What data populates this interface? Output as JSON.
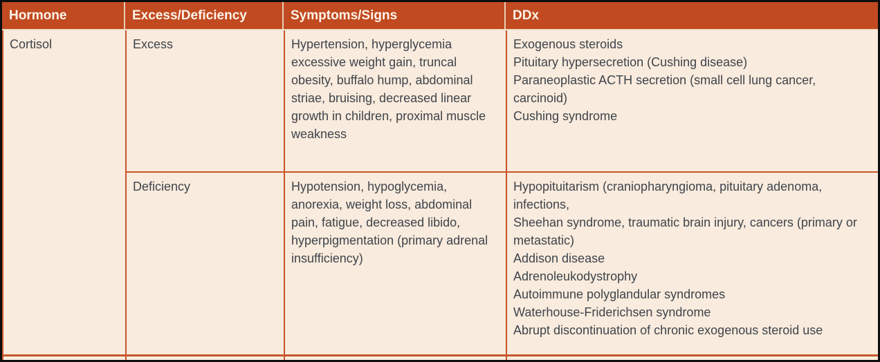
{
  "table": {
    "columns": [
      "Hormone",
      "Excess/Deficiency",
      "Symptoms/Signs",
      "DDx"
    ],
    "hormone": "Cortisol",
    "rows": [
      {
        "state": "Excess",
        "symptoms": "Hypertension, hyperglycemia excessive weight gain, truncal obesity, buffalo hump, abdominal striae, bruising, decreased linear growth in children, proximal muscle weakness",
        "ddx": [
          "Exogenous steroids",
          "Pituitary hypersecretion (Cushing disease)",
          "Paraneoplastic ACTH secretion (small cell lung cancer, carcinoid)",
          "Cushing syndrome"
        ]
      },
      {
        "state": "Deficiency",
        "symptoms": "Hypotension, hypoglycemia, anorexia, weight loss, abdominal pain, fatigue, decreased libido, hyperpigmentation (primary adrenal insufficiency)",
        "ddx": [
          "Hypopituitarism (craniopharyngioma, pituitary adenoma, infections,",
          "Sheehan syndrome, traumatic brain injury, cancers (primary or metastatic)",
          "Addison disease",
          "Adrenoleukodystrophy",
          "Autoimmune polyglandular syndromes",
          "Waterhouse-Friderichsen syndrome",
          "Abrupt discontinuation of chronic exogenous steroid use"
        ]
      }
    ]
  },
  "colors": {
    "header_bg": "#c14a20",
    "header_text": "#fdf4e9",
    "body_bg": "#f9ebdd",
    "grid_line": "#c8552a",
    "body_text": "#3e444c",
    "outer_frame": "#0d0d0d"
  }
}
